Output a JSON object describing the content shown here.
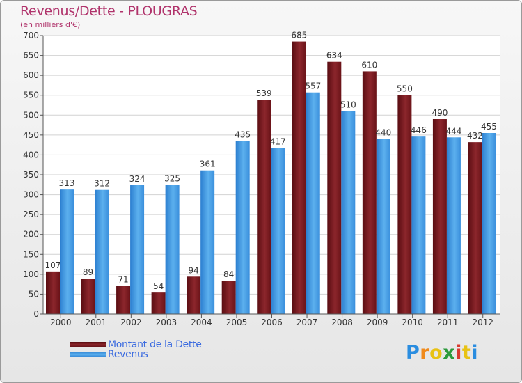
{
  "title": "Revenus/Dette - PLOUGRAS",
  "subtitle": "(en milliers d'€)",
  "colors": {
    "title": "#b0336b",
    "legend_text": "#3c6ce0",
    "dette": "#7a1f24",
    "revenus": "#4ea3e6"
  },
  "legend": {
    "dette_label": "Montant de la Dette",
    "revenus_label": "Revenus"
  },
  "brand": {
    "letters": [
      "P",
      "r",
      "o",
      "x",
      "i",
      "t",
      "i"
    ],
    "colors": [
      "#2a8de0",
      "#f08a1c",
      "#e8c214",
      "#2c9a3c",
      "#d93a2f",
      "#e8c214",
      "#2a8de0"
    ]
  },
  "chart_data": {
    "type": "bar",
    "title": "Revenus/Dette - PLOUGRAS",
    "subtitle": "(en milliers d'€)",
    "categories": [
      "2000",
      "2001",
      "2002",
      "2003",
      "2004",
      "2005",
      "2006",
      "2007",
      "2008",
      "2009",
      "2010",
      "2011",
      "2012"
    ],
    "series": [
      {
        "name": "Montant de la Dette",
        "values": [
          107,
          89,
          71,
          54,
          94,
          84,
          539,
          685,
          634,
          610,
          550,
          490,
          432
        ]
      },
      {
        "name": "Revenus",
        "values": [
          313,
          312,
          324,
          325,
          361,
          435,
          417,
          557,
          510,
          440,
          446,
          444,
          455
        ]
      }
    ],
    "ylim": [
      0,
      700
    ],
    "yticks": [
      0,
      50,
      100,
      150,
      200,
      250,
      300,
      350,
      400,
      450,
      500,
      550,
      600,
      650,
      700
    ],
    "grid": true,
    "legend_position": "bottom-left"
  }
}
